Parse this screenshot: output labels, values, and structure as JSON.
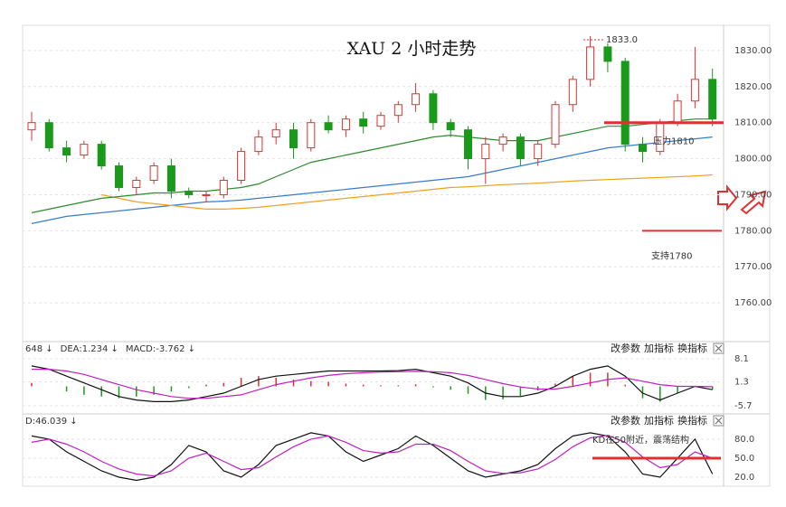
{
  "chart_data": [
    {
      "type": "candlestick",
      "title": "XAU 2 小时走势",
      "open": [
        1808,
        1810,
        1803,
        1801,
        1804,
        1798,
        1792,
        1794,
        1798,
        1791,
        1790,
        1790,
        1794,
        1802,
        1806,
        1808,
        1803,
        1810,
        1808,
        1811,
        1809,
        1812,
        1815,
        1818,
        1810,
        1808,
        1800,
        1804,
        1806,
        1800,
        1804,
        1815,
        1822,
        1831,
        1827,
        1804,
        1802,
        1810,
        1816,
        1822
      ],
      "high": [
        1813,
        1811,
        1805,
        1805,
        1805,
        1799,
        1795,
        1799,
        1800,
        1792,
        1791,
        1795,
        1803,
        1808,
        1810,
        1810,
        1811,
        1812,
        1812,
        1813,
        1813,
        1816,
        1821,
        1819,
        1811,
        1809,
        1806,
        1807,
        1807,
        1805,
        1816,
        1823,
        1834,
        1832,
        1828,
        1806,
        1811,
        1818,
        1831,
        1825
      ],
      "low": [
        1805,
        1802,
        1799,
        1800,
        1797,
        1791,
        1790,
        1793,
        1789,
        1789,
        1788,
        1789,
        1793,
        1801,
        1804,
        1800,
        1802,
        1807,
        1806,
        1807,
        1808,
        1810,
        1813,
        1808,
        1806,
        1797,
        1793,
        1802,
        1798,
        1798,
        1803,
        1813,
        1820,
        1824,
        1802,
        1799,
        1801,
        1809,
        1814,
        1809
      ],
      "close": [
        1810,
        1803,
        1801,
        1804,
        1798,
        1792,
        1794,
        1798,
        1791,
        1790,
        1790,
        1794,
        1802,
        1806,
        1808,
        1803,
        1810,
        1808,
        1811,
        1809,
        1812,
        1815,
        1818,
        1810,
        1808,
        1800,
        1804,
        1806,
        1800,
        1804,
        1815,
        1822,
        1831,
        1827,
        1804,
        1802,
        1810,
        1816,
        1822,
        1811
      ],
      "up_color": "#e03030",
      "down_color": "#1a9a1a",
      "series": [
        {
          "color": "#3a7cc8",
          "values": [
            1782,
            1783,
            1784,
            1784.5,
            1785,
            1785.5,
            1786,
            1786.5,
            1787,
            1787.5,
            1788,
            1788.2,
            1788.5,
            1789,
            1789.5,
            1790,
            1790.5,
            1791,
            1791.5,
            1792,
            1792.5,
            1793,
            1793.5,
            1794,
            1794.5,
            1795,
            1796,
            1797,
            1798,
            1799,
            1800,
            1801,
            1802,
            1803,
            1803.5,
            1804,
            1804.5,
            1805,
            1805.5,
            1806
          ]
        },
        {
          "color": "#f0a020",
          "values": [
            null,
            null,
            null,
            null,
            1790,
            1789,
            1788,
            1787.5,
            1787,
            1786.5,
            1786,
            1786,
            1786.2,
            1786.5,
            1787,
            1787.5,
            1788,
            1788.5,
            1789,
            1789.5,
            1790,
            1790.5,
            1791,
            1791.5,
            1792,
            1792.2,
            1792.5,
            1792.8,
            1793,
            1793.2,
            1793.5,
            1793.8,
            1794,
            1794.2,
            1794.4,
            1794.6,
            1794.8,
            1795,
            1795.2,
            1795.5
          ]
        },
        {
          "color": "#2e8a2e",
          "values": [
            1785,
            1786,
            1787,
            1788,
            1789,
            1789.5,
            1790,
            1790.5,
            1790.5,
            1791,
            1791,
            1791.5,
            1792,
            1793,
            1795,
            1797,
            1799,
            1800,
            1801,
            1802,
            1803,
            1804,
            1805,
            1806,
            1806.5,
            1806,
            1805.5,
            1805,
            1805,
            1805,
            1806,
            1807,
            1808,
            1809,
            1809,
            1809.5,
            1810,
            1810.5,
            1811,
            1811
          ]
        }
      ],
      "ylim": [
        1750,
        1837
      ],
      "yticks": [
        {
          "value": 1760,
          "label": "1760.00"
        },
        {
          "value": 1770,
          "label": "1770.00"
        },
        {
          "value": 1780,
          "label": "1780.00"
        },
        {
          "value": 1790,
          "label": "1790.00"
        },
        {
          "value": 1800,
          "label": "1800.00"
        },
        {
          "value": 1810,
          "label": "1810.00"
        },
        {
          "value": 1820,
          "label": "1820.00"
        },
        {
          "value": 1830,
          "label": "1830.00"
        }
      ],
      "grid": true,
      "annotations": [
        {
          "text": "1833.0",
          "value": 1833,
          "color": "#e03030"
        },
        {
          "text": "压力1810",
          "value": 1810,
          "color": "#e03030"
        },
        {
          "text": "支持1780",
          "value": 1780,
          "color": "#e03030"
        }
      ]
    },
    {
      "type": "macd",
      "legend": [
        {
          "text": "648 ↓",
          "color": "#111"
        },
        {
          "text": "DEA:1.234 ↓",
          "color": "#c020c0"
        },
        {
          "text": "MACD:-3.762 ↓",
          "color": "#666"
        }
      ],
      "buttons": [
        "改参数",
        "加指标",
        "换指标"
      ],
      "series": [
        {
          "color": "#111",
          "values": [
            6,
            5,
            3,
            1,
            -1,
            -3,
            -4,
            -4.5,
            -4.5,
            -4,
            -3,
            -2,
            0,
            2,
            3,
            3.5,
            4,
            4.5,
            4.5,
            4.5,
            4.5,
            4.6,
            5,
            4,
            3,
            1,
            -2,
            -3,
            -3,
            -2,
            0,
            3,
            5,
            6,
            3,
            -2,
            -4,
            -2,
            0,
            -1
          ]
        },
        {
          "color": "#c020c0",
          "values": [
            5,
            5,
            4.5,
            3.5,
            2,
            0.5,
            -1,
            -2,
            -3,
            -3.5,
            -3.5,
            -3,
            -2.5,
            -1,
            0.5,
            1.5,
            2.5,
            3.2,
            3.7,
            4,
            4.2,
            4.3,
            4.4,
            4.3,
            4,
            3.2,
            2,
            0.8,
            -0.2,
            -0.8,
            -0.8,
            0,
            1,
            2,
            2.5,
            1.5,
            0.5,
            0,
            0,
            -0.1
          ]
        }
      ],
      "bars": [
        1,
        0,
        -1.5,
        -2.5,
        -3,
        -3.5,
        -3,
        -2.5,
        -1.5,
        -0.5,
        0.5,
        1,
        2.5,
        3,
        2.5,
        2,
        1.5,
        1.3,
        0.8,
        0.5,
        0.3,
        0.3,
        0.6,
        -0.3,
        -1,
        -2.2,
        -4,
        -3.8,
        -2.8,
        -1.2,
        0.8,
        3,
        4,
        4,
        0.5,
        -3.5,
        -4.5,
        -2,
        0,
        -0.9
      ],
      "up_color": "#e03030",
      "down_color": "#1a9a1a",
      "ylim": [
        -8.1,
        12.6
      ],
      "yticks": [
        -5.7,
        1.3,
        8.1
      ],
      "grid": true
    },
    {
      "type": "kd",
      "legend": [
        {
          "text": "D:46.039 ↓",
          "color": "#c020c0"
        }
      ],
      "buttons": [
        "改参数",
        "加指标",
        "换指标"
      ],
      "series": [
        {
          "color": "#111",
          "values": [
            85,
            80,
            60,
            45,
            30,
            20,
            15,
            20,
            40,
            70,
            60,
            30,
            20,
            40,
            70,
            80,
            90,
            85,
            60,
            45,
            55,
            65,
            85,
            70,
            50,
            30,
            20,
            25,
            30,
            40,
            65,
            85,
            90,
            85,
            60,
            25,
            20,
            50,
            80,
            25
          ]
        },
        {
          "color": "#c020c0",
          "values": [
            75,
            80,
            72,
            60,
            45,
            33,
            25,
            22,
            30,
            50,
            58,
            45,
            32,
            35,
            52,
            68,
            80,
            85,
            75,
            62,
            58,
            60,
            72,
            72,
            62,
            45,
            30,
            26,
            27,
            33,
            48,
            68,
            82,
            86,
            75,
            52,
            35,
            40,
            60,
            50
          ]
        }
      ],
      "ylim": [
        10,
        117
      ],
      "yticks": [
        {
          "value": 20,
          "label": "20.0"
        },
        {
          "value": 50,
          "label": "50.0"
        },
        {
          "value": 80,
          "label": "80.0"
        }
      ],
      "grid": true,
      "annotations": [
        {
          "text": "KD在50附近，震荡结构",
          "value": 50,
          "color": "#e03030"
        }
      ]
    }
  ]
}
